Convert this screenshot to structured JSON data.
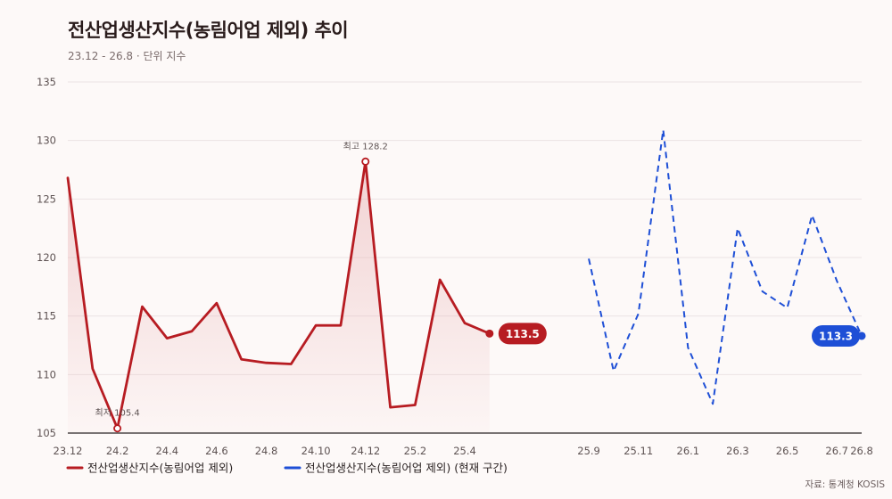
{
  "header": {
    "title": "전산업생산지수(농림어업 제외) 추이",
    "subtitle": "23.12 - 26.8 · 단위 지수"
  },
  "footer": {
    "source": "자료: 통계청 KOSIS"
  },
  "colors": {
    "actual": "#b71c22",
    "forecast": "#1e4fd6",
    "fill_top": "#e9b3b5",
    "background": "#fdf9f8"
  },
  "chart_data": {
    "type": "line",
    "ylim": [
      105,
      135
    ],
    "yticks": [
      105,
      110,
      115,
      120,
      125,
      130,
      135
    ],
    "x_range": [
      "23.12",
      "26.8"
    ],
    "x_tick_labels": [
      "23.12",
      "24.2",
      "24.4",
      "24.6",
      "24.8",
      "24.10",
      "24.12",
      "25.2",
      "25.4",
      "25.9",
      "25.11",
      "26.1",
      "26.3",
      "26.5",
      "26.7",
      "26.8"
    ],
    "grid": true,
    "legend_position": "bottom-left",
    "series": [
      {
        "name": "전산업생산지수(농림어업 제외)",
        "style": "solid",
        "x": [
          "23.12",
          "24.1",
          "24.2",
          "24.3",
          "24.4",
          "24.5",
          "24.6",
          "24.7",
          "24.8",
          "24.9",
          "24.10",
          "24.11",
          "24.12",
          "25.1",
          "25.2",
          "25.3",
          "25.4",
          "25.5"
        ],
        "values": [
          126.8,
          110.5,
          105.4,
          115.8,
          113.1,
          113.7,
          116.1,
          111.3,
          111.0,
          110.9,
          114.2,
          114.2,
          128.2,
          107.2,
          107.4,
          118.1,
          114.4,
          113.5
        ],
        "end_label": "113.5"
      },
      {
        "name": "전산업생산지수(농림어업 제외) (현재 구간)",
        "style": "dashed",
        "x": [
          "25.9",
          "25.10",
          "25.11",
          "25.12",
          "26.1",
          "26.2",
          "26.3",
          "26.4",
          "26.5",
          "26.6",
          "26.7",
          "26.8"
        ],
        "values": [
          119.9,
          110.3,
          115.2,
          130.9,
          112.3,
          107.5,
          122.5,
          117.1,
          115.7,
          123.6,
          118.0,
          113.3
        ],
        "end_label": "113.3"
      }
    ],
    "annotations": [
      {
        "label": "최저 105.4",
        "x": "24.2",
        "value": 105.4
      },
      {
        "label": "최고 128.2",
        "x": "24.12",
        "value": 128.2
      }
    ]
  }
}
